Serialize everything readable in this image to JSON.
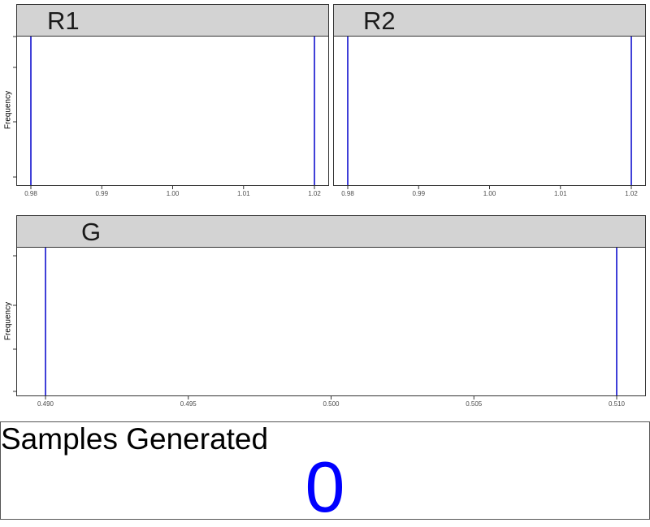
{
  "chart_data": [
    {
      "type": "histogram",
      "facet_label": "R1",
      "xlabel": "",
      "ylabel": "Frequency",
      "xlim": [
        0.98,
        1.02
      ],
      "x_ticks": [
        "0.98",
        "0.99",
        "1.00",
        "1.01",
        "1.02"
      ],
      "x_tick_values": [
        0.98,
        0.99,
        1.0,
        1.01,
        1.02
      ],
      "vlines": [
        0.98,
        1.02
      ],
      "line_color": "#0000cc",
      "grid": false
    },
    {
      "type": "histogram",
      "facet_label": "R2",
      "xlabel": "",
      "ylabel": "",
      "xlim": [
        0.98,
        1.02
      ],
      "x_ticks": [
        "0.98",
        "0.99",
        "1.00",
        "1.01",
        "1.02"
      ],
      "x_tick_values": [
        0.98,
        0.99,
        1.0,
        1.01,
        1.02
      ],
      "vlines": [
        0.98,
        1.02
      ],
      "line_color": "#0000cc",
      "grid": false
    },
    {
      "type": "histogram",
      "facet_label": "G",
      "xlabel": "",
      "ylabel": "Frequency",
      "xlim": [
        0.49,
        0.51
      ],
      "x_ticks": [
        "0.490",
        "0.495",
        "0.500",
        "0.505",
        "0.510"
      ],
      "x_tick_values": [
        0.49,
        0.495,
        0.5,
        0.505,
        0.51
      ],
      "vlines": [
        0.49,
        0.51
      ],
      "line_color": "#0000cc",
      "grid": false
    }
  ],
  "samples": {
    "title": "Samples Generated",
    "count": "0",
    "count_color": "#0000ff"
  }
}
